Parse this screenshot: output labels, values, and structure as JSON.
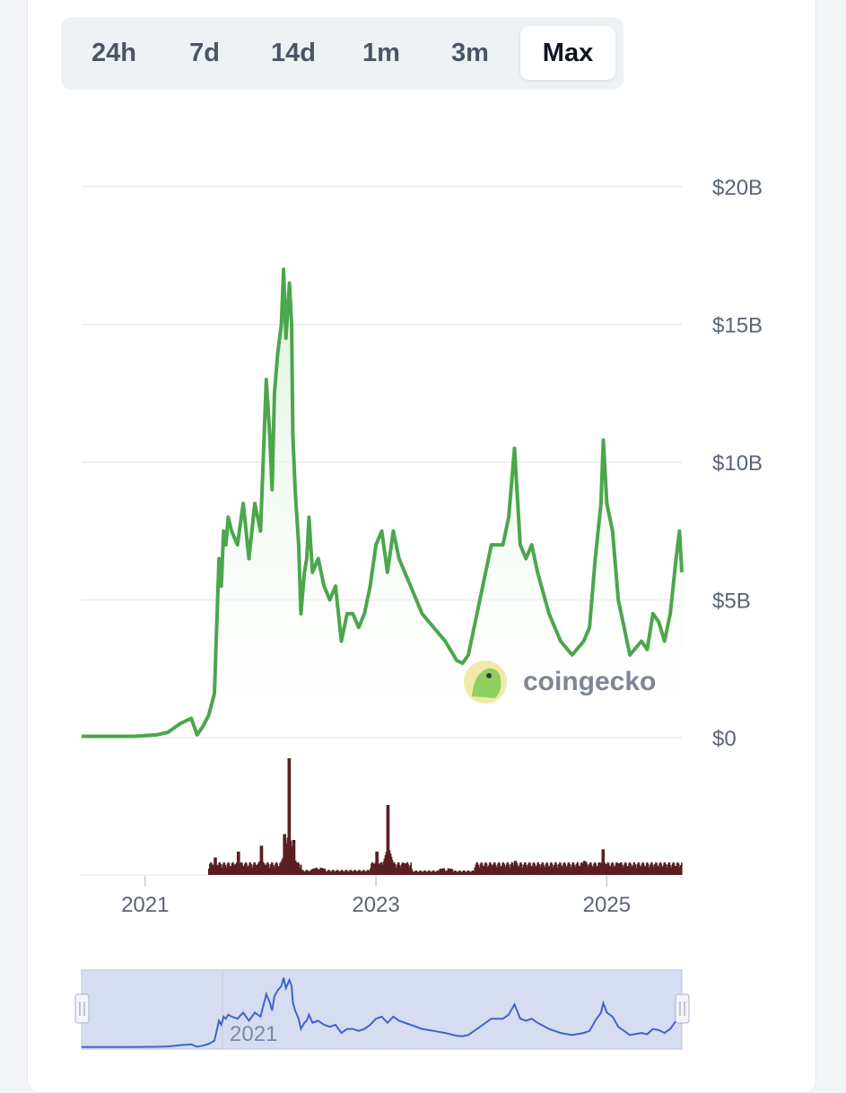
{
  "range_tabs": [
    {
      "label": "24h",
      "active": false
    },
    {
      "label": "7d",
      "active": false
    },
    {
      "label": "14d",
      "active": false
    },
    {
      "label": "1m",
      "active": false
    },
    {
      "label": "3m",
      "active": false
    },
    {
      "label": "Max",
      "active": true
    }
  ],
  "watermark": {
    "text": "coingecko",
    "icon": "gecko-logo-icon"
  },
  "navigator": {
    "year_label": "2021"
  },
  "colors": {
    "line": "#4ca64c",
    "area_top": "#d9f0d9",
    "volume": "#5a1f22",
    "grid": "#e8eaee",
    "navigator_fill": "#d7ddf0",
    "navigator_line": "#3f64c8"
  },
  "chart_data": {
    "type": "line",
    "ylim": [
      0,
      20
    ],
    "y_ticks": [
      "$0",
      "$5B",
      "$10B",
      "$15B",
      "$20B"
    ],
    "y_tick_values": [
      0,
      5,
      10,
      15,
      20
    ],
    "xlim": [
      2020.45,
      2025.65
    ],
    "x_ticks": [
      "2021",
      "2023",
      "2025"
    ],
    "x_tick_values": [
      2021.0,
      2023.0,
      2025.0
    ],
    "grid": true,
    "series": [
      {
        "x": [
          2020.45,
          2020.9,
          2021.1,
          2021.2,
          2021.3,
          2021.4,
          2021.45,
          2021.5,
          2021.55,
          2021.6,
          2021.62,
          2021.64,
          2021.66,
          2021.68,
          2021.7,
          2021.72,
          2021.75,
          2021.8,
          2021.85,
          2021.9,
          2021.95,
          2022.0,
          2022.05,
          2022.08,
          2022.1,
          2022.12,
          2022.15,
          2022.18,
          2022.2,
          2022.22,
          2022.25,
          2022.27,
          2022.28,
          2022.3,
          2022.33,
          2022.35,
          2022.38,
          2022.4,
          2022.42,
          2022.45,
          2022.5,
          2022.55,
          2022.6,
          2022.65,
          2022.7,
          2022.75,
          2022.8,
          2022.85,
          2022.9,
          2022.95,
          2023.0,
          2023.05,
          2023.1,
          2023.15,
          2023.2,
          2023.25,
          2023.3,
          2023.4,
          2023.5,
          2023.6,
          2023.7,
          2023.75,
          2023.8,
          2023.9,
          2024.0,
          2024.1,
          2024.15,
          2024.2,
          2024.25,
          2024.3,
          2024.35,
          2024.4,
          2024.5,
          2024.6,
          2024.7,
          2024.8,
          2024.85,
          2024.9,
          2024.95,
          2024.97,
          2025.0,
          2025.05,
          2025.1,
          2025.15,
          2025.2,
          2025.3,
          2025.35,
          2025.4,
          2025.45,
          2025.5,
          2025.55,
          2025.6,
          2025.63,
          2025.65
        ],
        "values": [
          0.05,
          0.05,
          0.1,
          0.2,
          0.5,
          0.7,
          0.1,
          0.4,
          0.8,
          1.6,
          4.0,
          6.5,
          5.5,
          7.5,
          7.0,
          8.0,
          7.5,
          7.0,
          8.5,
          6.5,
          8.5,
          7.5,
          13.0,
          11.0,
          9.0,
          12.5,
          14.0,
          15.0,
          17.0,
          14.5,
          16.5,
          15.0,
          11.0,
          9.0,
          7.0,
          4.5,
          6.0,
          6.5,
          8.0,
          6.0,
          6.5,
          5.5,
          5.0,
          5.5,
          3.5,
          4.5,
          4.5,
          4.0,
          4.5,
          5.5,
          7.0,
          7.5,
          6.0,
          7.5,
          6.5,
          6.0,
          5.5,
          4.5,
          4.0,
          3.5,
          2.8,
          2.7,
          3.0,
          5.0,
          7.0,
          7.0,
          8.0,
          10.5,
          7.0,
          6.5,
          7.0,
          6.0,
          4.5,
          3.5,
          3.0,
          3.5,
          4.0,
          6.5,
          8.5,
          10.8,
          8.5,
          7.5,
          5.0,
          4.0,
          3.0,
          3.5,
          3.2,
          4.5,
          4.2,
          3.5,
          4.5,
          6.5,
          7.5,
          6.0
        ]
      }
    ],
    "volume_peaks": [
      {
        "x": 2021.6,
        "v": 0.15
      },
      {
        "x": 2021.8,
        "v": 0.2
      },
      {
        "x": 2022.0,
        "v": 0.25
      },
      {
        "x": 2022.2,
        "v": 0.35
      },
      {
        "x": 2022.24,
        "v": 1.0
      },
      {
        "x": 2022.28,
        "v": 0.3
      },
      {
        "x": 2022.5,
        "v": 0.05
      },
      {
        "x": 2023.0,
        "v": 0.2
      },
      {
        "x": 2023.1,
        "v": 0.6
      },
      {
        "x": 2023.25,
        "v": 0.1
      },
      {
        "x": 2023.6,
        "v": 0.03
      },
      {
        "x": 2024.0,
        "v": 0.08
      },
      {
        "x": 2024.2,
        "v": 0.12
      },
      {
        "x": 2024.4,
        "v": 0.08
      },
      {
        "x": 2024.8,
        "v": 0.12
      },
      {
        "x": 2024.96,
        "v": 0.22
      },
      {
        "x": 2025.1,
        "v": 0.1
      },
      {
        "x": 2025.6,
        "v": 0.05
      }
    ]
  }
}
